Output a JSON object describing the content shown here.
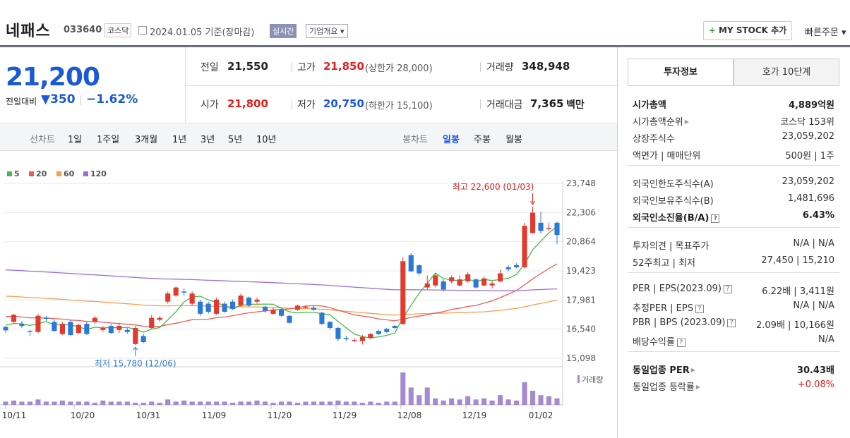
{
  "header": {
    "stock_name": "네패스",
    "stock_code": "033640",
    "market": "코스닥",
    "date_text": "2024.01.05  기준(장마감)",
    "realtime_label": "실시간",
    "company_label": "기업개요 ▾",
    "mystock_label": "MY STOCK 추가",
    "mystock_plus": "+",
    "quick_order_label": "빠른주문 ▾"
  },
  "price": {
    "current": "21,200",
    "change_label": "전일대비",
    "change_arrow": "▼",
    "change_amount": "350",
    "change_pct": "−1.62%",
    "prev_close_label": "전일",
    "prev_close": "21,550",
    "open_label": "시가",
    "open": "21,800",
    "high_label": "고가",
    "high": "21,850",
    "upper_limit_note": "(상한가 28,000)",
    "low_label": "저가",
    "low": "20,750",
    "lower_limit_note": "(하한가 15,100)",
    "volume_label": "거래량",
    "volume": "348,948",
    "trade_value_label": "거래대금",
    "trade_value": "7,365",
    "trade_value_unit": "백만"
  },
  "period_bar": {
    "line_label": "선차트",
    "line_items": [
      "1일",
      "1주일",
      "3개월",
      "1년",
      "3년",
      "5년",
      "10년"
    ],
    "candle_label": "봉차트",
    "candle_items": [
      "일봉",
      "주봉",
      "월봉"
    ],
    "active_candle": "일봉"
  },
  "chart_data": {
    "type": "candlestick",
    "moving_averages": [
      {
        "name": "5",
        "color": "#48b848"
      },
      {
        "name": "20",
        "color": "#f05a5a"
      },
      {
        "name": "60",
        "color": "#f4a04a"
      },
      {
        "name": "120",
        "color": "#9b6fd6"
      }
    ],
    "y_ticks": [
      "23,748",
      "22,306",
      "20,864",
      "19,423",
      "17,981",
      "16,540",
      "15,098"
    ],
    "ylim": [
      15098,
      23748
    ],
    "x_ticks": [
      "10/11",
      "10/20",
      "10/31",
      "11/09",
      "11/20",
      "11/29",
      "12/08",
      "12/19",
      "01/02"
    ],
    "max_annotation": "최고 22,600 (01/03)",
    "min_annotation": "최저 15,780 (12/06)",
    "volume_label": "거래량",
    "candles": [
      {
        "o": 16650,
        "c": 16480,
        "h": 16700,
        "l": 16350
      },
      {
        "o": 16900,
        "c": 17250,
        "h": 17300,
        "l": 16850
      },
      {
        "o": 16800,
        "c": 16700,
        "h": 16950,
        "l": 16600
      },
      {
        "o": 16450,
        "c": 16400,
        "h": 16500,
        "l": 16200
      },
      {
        "o": 16400,
        "c": 17200,
        "h": 17300,
        "l": 16350
      },
      {
        "o": 17100,
        "c": 17050,
        "h": 17200,
        "l": 16950
      },
      {
        "o": 16900,
        "c": 16450,
        "h": 17000,
        "l": 16400
      },
      {
        "o": 16300,
        "c": 16800,
        "h": 16900,
        "l": 16250
      },
      {
        "o": 16900,
        "c": 16250,
        "h": 17000,
        "l": 16200
      },
      {
        "o": 16350,
        "c": 16750,
        "h": 16800,
        "l": 16300
      },
      {
        "o": 16800,
        "c": 16300,
        "h": 16900,
        "l": 16250
      },
      {
        "o": 16900,
        "c": 17100,
        "h": 17200,
        "l": 16800
      },
      {
        "o": 16500,
        "c": 16600,
        "h": 16700,
        "l": 16400
      },
      {
        "o": 16700,
        "c": 16350,
        "h": 16800,
        "l": 16300
      },
      {
        "o": 16500,
        "c": 16700,
        "h": 16800,
        "l": 16350
      },
      {
        "o": 16500,
        "c": 16400,
        "h": 16600,
        "l": 16300
      },
      {
        "o": 15800,
        "c": 16600,
        "h": 16700,
        "l": 15750
      },
      {
        "o": 16200,
        "c": 15900,
        "h": 16300,
        "l": 15850
      },
      {
        "o": 16600,
        "c": 17100,
        "h": 17250,
        "l": 16550
      },
      {
        "o": 17000,
        "c": 17100,
        "h": 17200,
        "l": 16900
      },
      {
        "o": 17900,
        "c": 18300,
        "h": 18400,
        "l": 17800
      },
      {
        "o": 18200,
        "c": 18600,
        "h": 18650,
        "l": 18150
      },
      {
        "o": 18400,
        "c": 18350,
        "h": 18550,
        "l": 18200
      },
      {
        "o": 17800,
        "c": 18300,
        "h": 18400,
        "l": 17700
      },
      {
        "o": 17900,
        "c": 17300,
        "h": 18000,
        "l": 17200
      },
      {
        "o": 17800,
        "c": 17400,
        "h": 17900,
        "l": 17300
      },
      {
        "o": 17300,
        "c": 18000,
        "h": 18100,
        "l": 17250
      },
      {
        "o": 17800,
        "c": 17400,
        "h": 17900,
        "l": 17350
      },
      {
        "o": 17900,
        "c": 17550,
        "h": 18000,
        "l": 17500
      },
      {
        "o": 17700,
        "c": 18200,
        "h": 18300,
        "l": 17650
      },
      {
        "o": 18100,
        "c": 17700,
        "h": 18150,
        "l": 17650
      },
      {
        "o": 17900,
        "c": 18000,
        "h": 18100,
        "l": 17800
      },
      {
        "o": 17650,
        "c": 17450,
        "h": 17700,
        "l": 17350
      },
      {
        "o": 17300,
        "c": 17500,
        "h": 17600,
        "l": 17250
      },
      {
        "o": 17500,
        "c": 17200,
        "h": 17550,
        "l": 17150
      },
      {
        "o": 17200,
        "c": 16850,
        "h": 17250,
        "l": 16800
      },
      {
        "o": 17500,
        "c": 17700,
        "h": 17750,
        "l": 17450
      },
      {
        "o": 17600,
        "c": 17650,
        "h": 17700,
        "l": 17550
      },
      {
        "o": 17600,
        "c": 17500,
        "h": 17700,
        "l": 17450
      },
      {
        "o": 17350,
        "c": 16800,
        "h": 17400,
        "l": 16750
      },
      {
        "o": 16900,
        "c": 16600,
        "h": 16950,
        "l": 16500
      },
      {
        "o": 16600,
        "c": 16050,
        "h": 16650,
        "l": 15950
      },
      {
        "o": 16100,
        "c": 16050,
        "h": 16200,
        "l": 15950
      },
      {
        "o": 16000,
        "c": 16000,
        "h": 16100,
        "l": 15900
      },
      {
        "o": 15950,
        "c": 16150,
        "h": 16250,
        "l": 15780
      },
      {
        "o": 16100,
        "c": 16300,
        "h": 16350,
        "l": 16050
      },
      {
        "o": 16450,
        "c": 16300,
        "h": 16500,
        "l": 16250
      },
      {
        "o": 16550,
        "c": 16400,
        "h": 16600,
        "l": 16350
      },
      {
        "o": 16700,
        "c": 16600,
        "h": 16750,
        "l": 16550
      },
      {
        "o": 16800,
        "c": 19900,
        "h": 20100,
        "l": 16750
      },
      {
        "o": 20200,
        "c": 19400,
        "h": 20300,
        "l": 19350
      },
      {
        "o": 19700,
        "c": 19300,
        "h": 19750,
        "l": 19200
      },
      {
        "o": 18600,
        "c": 18800,
        "h": 19200,
        "l": 18500
      },
      {
        "o": 18700,
        "c": 19200,
        "h": 19300,
        "l": 18600
      },
      {
        "o": 18900,
        "c": 18500,
        "h": 19000,
        "l": 18400
      },
      {
        "o": 18900,
        "c": 19100,
        "h": 19200,
        "l": 18800
      },
      {
        "o": 18700,
        "c": 19000,
        "h": 19200,
        "l": 18650
      },
      {
        "o": 18900,
        "c": 19250,
        "h": 19350,
        "l": 18850
      },
      {
        "o": 19000,
        "c": 18600,
        "h": 19050,
        "l": 18550
      },
      {
        "o": 18700,
        "c": 19050,
        "h": 19150,
        "l": 18650
      },
      {
        "o": 18700,
        "c": 18800,
        "h": 18900,
        "l": 18550
      },
      {
        "o": 18900,
        "c": 19300,
        "h": 19500,
        "l": 18850
      },
      {
        "o": 19600,
        "c": 19500,
        "h": 19700,
        "l": 19400
      },
      {
        "o": 19700,
        "c": 19600,
        "h": 19800,
        "l": 19550
      },
      {
        "o": 19600,
        "c": 21650,
        "h": 21800,
        "l": 19550
      },
      {
        "o": 21300,
        "c": 22300,
        "h": 22600,
        "l": 21250
      },
      {
        "o": 21800,
        "c": 21400,
        "h": 22350,
        "l": 21250
      },
      {
        "o": 21550,
        "c": 21550,
        "h": 21800,
        "l": 21400
      },
      {
        "o": 21800,
        "c": 21200,
        "h": 21850,
        "l": 20750
      }
    ],
    "volumes": [
      3,
      4,
      3,
      3,
      5,
      3,
      3,
      4,
      3,
      3,
      3,
      2,
      4,
      3,
      3,
      3,
      2,
      2,
      3,
      2,
      5,
      3,
      4,
      3,
      3,
      3,
      3,
      3,
      2,
      3,
      3,
      4,
      3,
      2,
      3,
      3,
      2,
      3,
      3,
      3,
      3,
      4,
      3,
      3,
      2,
      3,
      2,
      3,
      3,
      30,
      16,
      9,
      16,
      6,
      4,
      6,
      5,
      8,
      5,
      6,
      4,
      9,
      5,
      4,
      21,
      13,
      9,
      8,
      6
    ]
  },
  "right_panel": {
    "tab_invest": "투자정보",
    "tab_orderbook": "호가 10단계",
    "rows": [
      {
        "k": "시가총액",
        "v": "4,889억원",
        "bold": true
      },
      {
        "k": "시가총액순위",
        "v": "코스닥 153위",
        "arrow": true
      },
      {
        "k": "상장주식수",
        "v": "23,059,202"
      },
      {
        "k": "액면가 | 매매단위",
        "v": "500원 | 1주"
      },
      {
        "k": "외국인한도주식수(A)",
        "v": "23,059,202"
      },
      {
        "k": "외국인보유주식수(B)",
        "v": "1,481,696"
      },
      {
        "k": "외국인소진율(B/A)",
        "v": "6.43%",
        "bold": true,
        "q": true
      },
      {
        "k": "투자의견 | 목표주가",
        "v": "N/A | N/A"
      },
      {
        "k": "52주최고 | 최저",
        "v": "27,450 | 15,210"
      },
      {
        "k": "PER | EPS(2023.09)",
        "v": "6.22배 | 3,411원",
        "q": true
      },
      {
        "k": "추정PER | EPS",
        "v": "N/A | N/A",
        "q": true
      },
      {
        "k": "PBR | BPS (2023.09)",
        "v": "2.09배 | 10,166원",
        "q": true
      },
      {
        "k": "배당수익률",
        "v": "N/A",
        "q": true
      },
      {
        "k": "동일업종 PER",
        "v": "30.43배",
        "bold": true,
        "arrow": true
      },
      {
        "k": "동일업종 등락률",
        "v": "+0.08%",
        "arrow": true,
        "red": true
      }
    ]
  }
}
